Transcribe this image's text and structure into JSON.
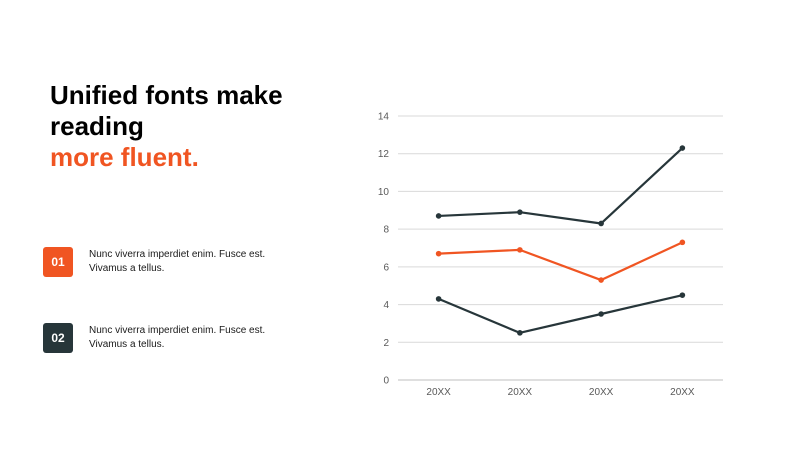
{
  "title": {
    "line1": "Unified fonts make",
    "line2": "reading",
    "line3": "more fluent."
  },
  "items": [
    {
      "number": "01",
      "text": "Nunc viverra imperdiet enim. Fusce est. Vivamus a tellus.",
      "color": "#f05522"
    },
    {
      "number": "02",
      "text": "Nunc viverra imperdiet enim. Fusce est. Vivamus a tellus.",
      "color": "#27363a"
    }
  ],
  "chart_data": {
    "type": "line",
    "categories": [
      "20XX",
      "20XX",
      "20XX",
      "20XX"
    ],
    "ylim": [
      0,
      14
    ],
    "yticks": [
      0,
      2,
      4,
      6,
      8,
      10,
      12,
      14
    ],
    "grid": true,
    "series": [
      {
        "values": [
          8.7,
          8.9,
          8.3,
          12.3
        ],
        "color": "#27363a"
      },
      {
        "values": [
          6.7,
          6.9,
          5.3,
          7.3
        ],
        "color": "#f05522"
      },
      {
        "values": [
          4.3,
          2.5,
          3.5,
          4.5
        ],
        "color": "#27363a"
      }
    ],
    "xlabel": "",
    "ylabel": ""
  }
}
